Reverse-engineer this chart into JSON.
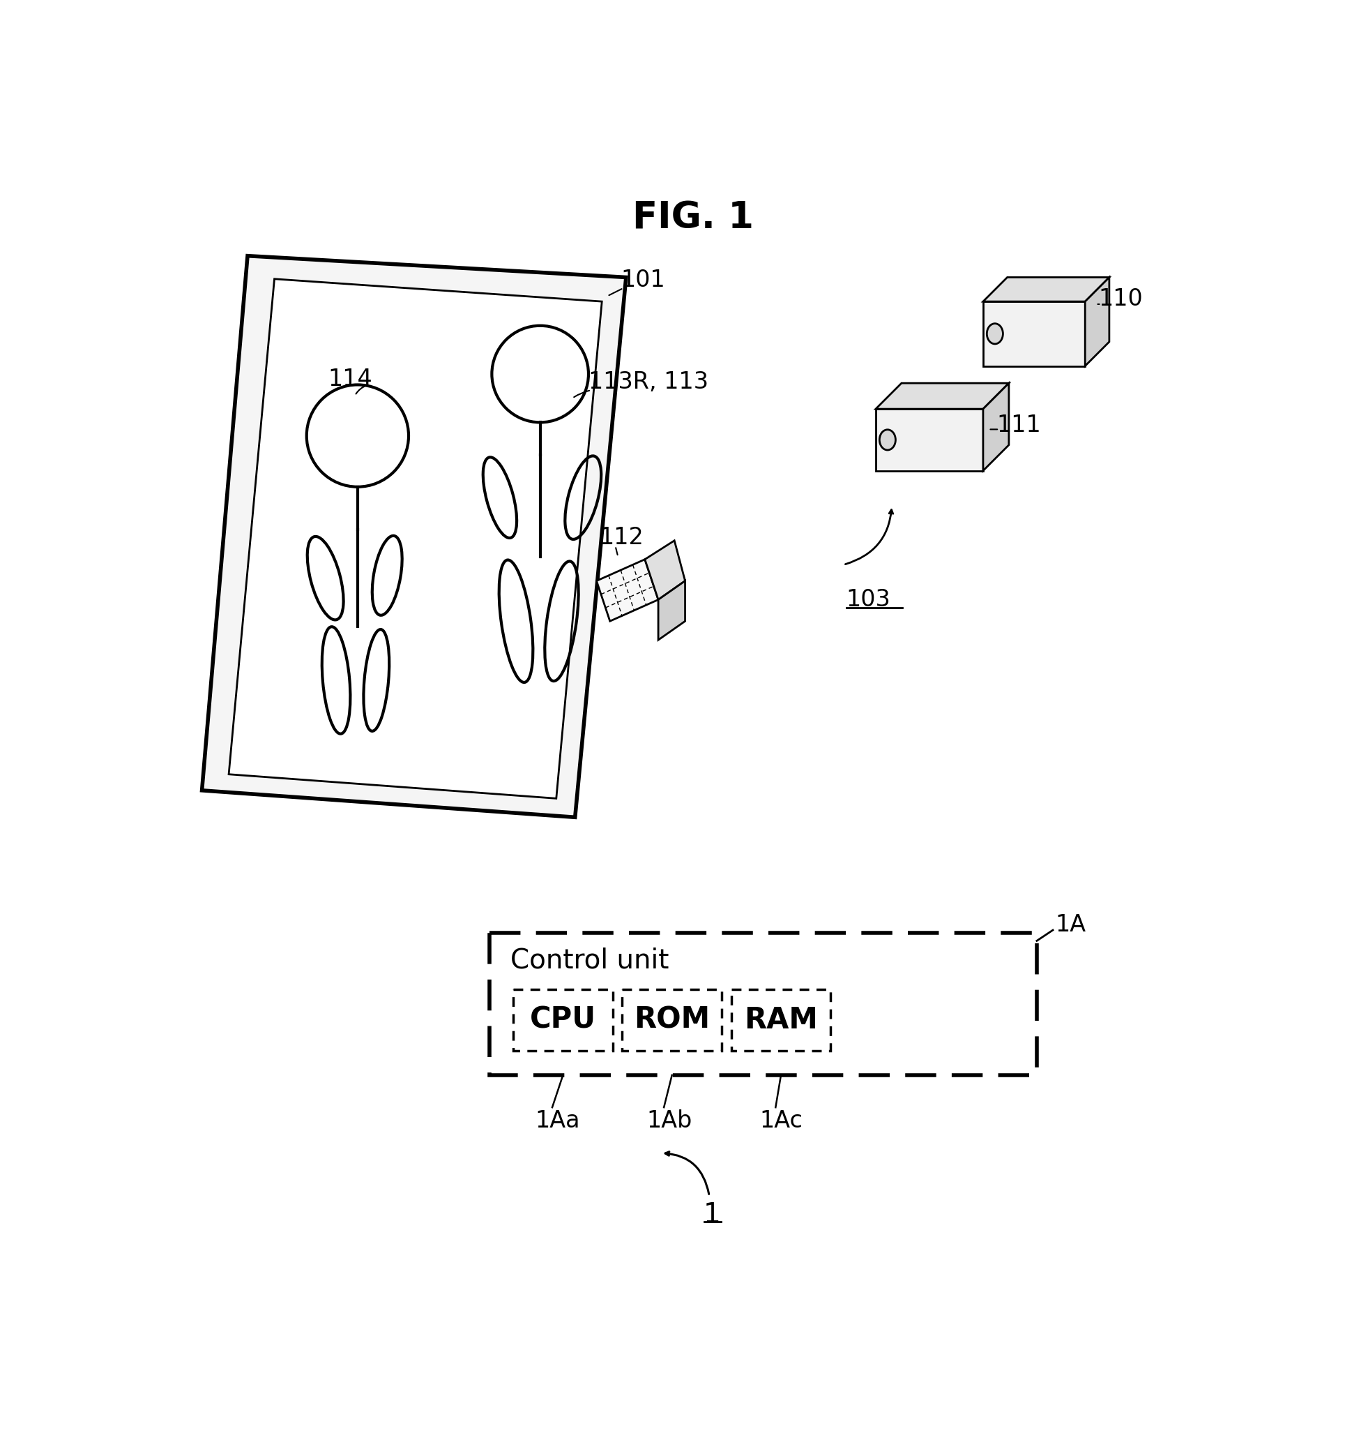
{
  "title": "FIG. 1",
  "bg_color": "#ffffff",
  "text_color": "#000000",
  "fig_width": 19.39,
  "fig_height": 20.61,
  "labels": {
    "fig_title": "FIG. 1",
    "label_101": "101",
    "label_110": "110",
    "label_111": "111",
    "label_112": "112",
    "label_113": "113R, 113",
    "label_114": "114",
    "label_103": "103",
    "label_1A": "1A",
    "label_1Aa": "1Aa",
    "label_1Ab": "1Ab",
    "label_1Ac": "1Ac",
    "label_1": "1",
    "control_unit": "Control unit",
    "cpu": "CPU",
    "rom": "ROM",
    "ram": "RAM"
  }
}
